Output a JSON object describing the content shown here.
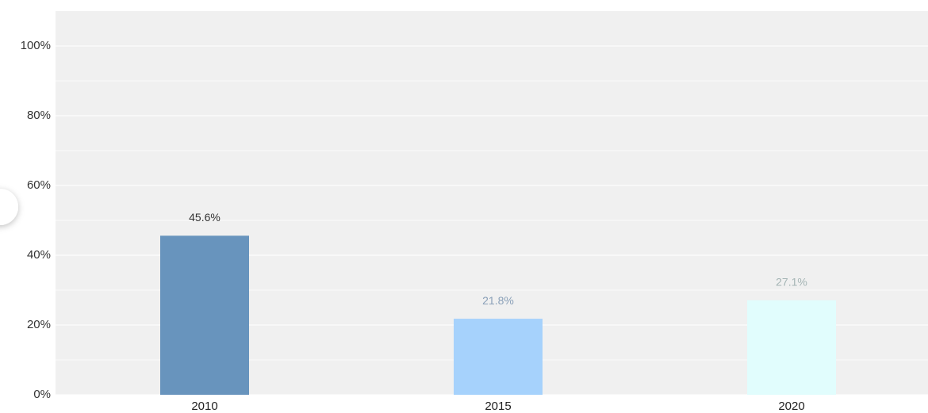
{
  "chart_data": {
    "type": "bar",
    "categories": [
      "2010",
      "2015",
      "2020"
    ],
    "values": [
      45.6,
      21.8,
      27.1
    ],
    "value_labels": [
      "45.6%",
      "21.8%",
      "27.1%"
    ],
    "colors": [
      "#6894bd",
      "#a6d2fc",
      "#e1fdfd"
    ],
    "label_colors": [
      "#333333",
      "#8aa0b8",
      "#a5b5b5"
    ],
    "ylim": [
      0,
      110
    ],
    "yticks": [
      {
        "value": 0,
        "label": "0%"
      },
      {
        "value": 20,
        "label": "20%"
      },
      {
        "value": 40,
        "label": "40%"
      },
      {
        "value": 60,
        "label": "60%"
      },
      {
        "value": 80,
        "label": "80%"
      },
      {
        "value": 100,
        "label": "100%"
      }
    ],
    "minor_yticks": [
      10,
      30,
      50,
      70,
      90
    ],
    "grid": true
  }
}
